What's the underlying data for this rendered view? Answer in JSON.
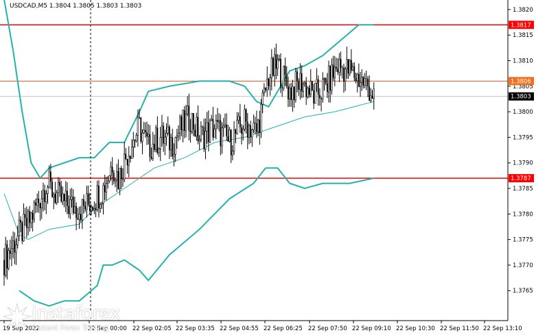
{
  "header": {
    "symbol_line": "USDCAD,M5  1.3804 1.3805 1.3803 1.3803"
  },
  "branding": {
    "name": "instaforex",
    "tagline": "Instant Forex Trading",
    "icon": "instaforex-burst-logo-icon"
  },
  "colors": {
    "bollinger": "#20b2aa",
    "sma": "#20b2aa",
    "level_line": "#ff0000",
    "level_tag": "#ff0000",
    "price_line": "#c0c0c0",
    "candles": "#000000"
  },
  "chart_data": {
    "type": "candlestick",
    "symbol": "USDCAD",
    "timeframe": "M5",
    "ylim": [
      1.3759,
      1.3822
    ],
    "yticks": [
      1.3765,
      1.377,
      1.3775,
      1.378,
      1.3785,
      1.379,
      1.3795,
      1.38,
      1.3805,
      1.381,
      1.3815,
      1.382
    ],
    "ytick_labels": [
      "1.3765",
      "1.3770",
      "1.3775",
      "1.3780",
      "1.3785",
      "1.3790",
      "1.3795",
      "1.3800",
      "1.3805",
      "1.3810",
      "1.3815",
      "1.3820"
    ],
    "xtick_labels": [
      "19 Sep 2022",
      "22 Sep 00:00",
      "22 Sep 02:05",
      "22 Sep 03:35",
      "22 Sep 04:55",
      "22 Sep 06:25",
      "22 Sep 07:50",
      "22 Sep 09:10",
      "22 Sep 10:30",
      "22 Sep 11:50",
      "22 Sep 13:10"
    ],
    "xtick_bar_index": [
      0,
      37,
      65,
      97,
      129,
      161,
      193,
      225,
      257,
      289,
      321
    ],
    "levels": [
      {
        "name": "resistance",
        "value": 1.3817,
        "label": "1.3817"
      },
      {
        "name": "pivot",
        "value": 1.3806,
        "label": "1.3806"
      },
      {
        "name": "support",
        "value": 1.3787,
        "label": "1.3787"
      }
    ],
    "current_price": {
      "value": 1.3803,
      "label": "1.3803"
    },
    "period_separator_bar": 37,
    "close_path": [
      [
        0,
        1.3771
      ],
      [
        10,
        1.3776
      ],
      [
        16,
        1.3778
      ],
      [
        22,
        1.3782
      ],
      [
        28,
        1.3786
      ],
      [
        34,
        1.3784
      ],
      [
        40,
        1.3782
      ],
      [
        52,
        1.3781
      ],
      [
        60,
        1.3783
      ],
      [
        66,
        1.3785
      ],
      [
        72,
        1.379
      ],
      [
        76,
        1.3787
      ],
      [
        82,
        1.3792
      ],
      [
        90,
        1.3797
      ],
      [
        96,
        1.3793
      ],
      [
        104,
        1.3795
      ],
      [
        112,
        1.3794
      ],
      [
        118,
        1.3797
      ],
      [
        124,
        1.3799
      ],
      [
        130,
        1.3795
      ],
      [
        140,
        1.3797
      ],
      [
        150,
        1.3794
      ],
      [
        160,
        1.3798
      ],
      [
        168,
        1.3796
      ],
      [
        176,
        1.3807
      ],
      [
        182,
        1.3809
      ],
      [
        190,
        1.3804
      ],
      [
        198,
        1.3806
      ],
      [
        206,
        1.3803
      ],
      [
        214,
        1.3805
      ],
      [
        222,
        1.3809
      ],
      [
        230,
        1.3808
      ],
      [
        238,
        1.3806
      ],
      [
        242,
        1.3805
      ],
      [
        246,
        1.3803
      ]
    ],
    "ma_path": [
      [
        0,
        1.3784
      ],
      [
        10,
        1.3776
      ],
      [
        16,
        1.3775
      ],
      [
        30,
        1.3777
      ],
      [
        50,
        1.3778
      ],
      [
        60,
        1.3781
      ],
      [
        80,
        1.3785
      ],
      [
        100,
        1.3789
      ],
      [
        120,
        1.3791
      ],
      [
        140,
        1.3794
      ],
      [
        160,
        1.3795
      ],
      [
        180,
        1.3797
      ],
      [
        200,
        1.3799
      ],
      [
        220,
        1.38
      ],
      [
        246,
        1.3802
      ]
    ],
    "bb_upper_path": [
      [
        0,
        1.3822
      ],
      [
        6,
        1.3812
      ],
      [
        12,
        1.38
      ],
      [
        18,
        1.379
      ],
      [
        24,
        1.3787
      ],
      [
        30,
        1.3789
      ],
      [
        40,
        1.379
      ],
      [
        50,
        1.3791
      ],
      [
        60,
        1.3791
      ],
      [
        70,
        1.3794
      ],
      [
        80,
        1.3794
      ],
      [
        90,
        1.38
      ],
      [
        96,
        1.3804
      ],
      [
        110,
        1.3805
      ],
      [
        130,
        1.3806
      ],
      [
        150,
        1.3806
      ],
      [
        160,
        1.3805
      ],
      [
        168,
        1.3802
      ],
      [
        176,
        1.3801
      ],
      [
        182,
        1.3804
      ],
      [
        190,
        1.3808
      ],
      [
        200,
        1.3809
      ],
      [
        212,
        1.3811
      ],
      [
        220,
        1.3813
      ],
      [
        236,
        1.3817
      ],
      [
        246,
        1.3817
      ]
    ],
    "bb_lower_path": [
      [
        10,
        1.3765
      ],
      [
        20,
        1.3763
      ],
      [
        30,
        1.3762
      ],
      [
        40,
        1.3763
      ],
      [
        50,
        1.3763
      ],
      [
        62,
        1.3766
      ],
      [
        66,
        1.377
      ],
      [
        72,
        1.377
      ],
      [
        80,
        1.3771
      ],
      [
        90,
        1.3769
      ],
      [
        96,
        1.3767
      ],
      [
        110,
        1.3772
      ],
      [
        130,
        1.3777
      ],
      [
        150,
        1.3783
      ],
      [
        166,
        1.3786
      ],
      [
        174,
        1.3789
      ],
      [
        182,
        1.3789
      ],
      [
        190,
        1.3786
      ],
      [
        200,
        1.3785
      ],
      [
        212,
        1.3786
      ],
      [
        230,
        1.3786
      ],
      [
        246,
        1.3787
      ]
    ],
    "xlabel": "",
    "ylabel": "",
    "grid": false,
    "legend": "none"
  }
}
